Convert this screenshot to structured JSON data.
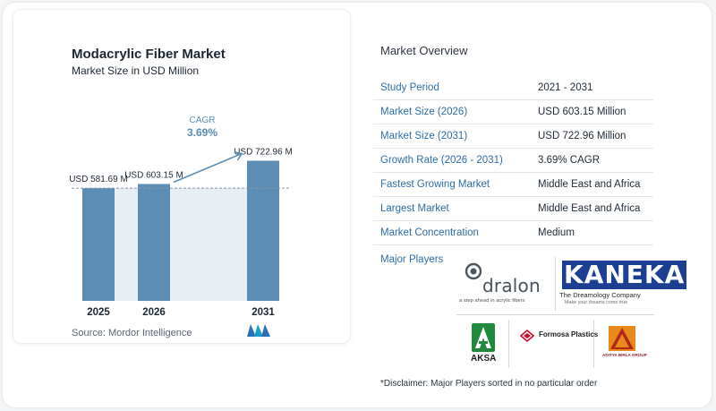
{
  "chart_data": {
    "type": "bar",
    "title": "Modacrylic Fiber Market",
    "subtitle": "Market Size in USD Million",
    "categories": [
      "2025",
      "2026",
      "2031"
    ],
    "values": [
      581.69,
      603.15,
      722.96
    ],
    "data_labels": [
      "USD 581.69 M",
      "USD 603.15 M",
      "USD 722.96 M"
    ],
    "cagr_label": "CAGR",
    "cagr_value": "3.69%",
    "reference_line": "dashed at 2025 value",
    "grid": false,
    "legend": "none",
    "colors": {
      "bar": "#5b8db5",
      "band": "#e6eef4",
      "arrow": "#5b8db5",
      "cagr": "#5b8db5"
    }
  },
  "source": "Source:  Mordor Intelligence",
  "overview": {
    "title": "Market Overview",
    "rows": [
      {
        "key": "Study Period",
        "value": "2021 - 2031"
      },
      {
        "key": "Market Size (2026)",
        "value": "USD 603.15 Million"
      },
      {
        "key": "Market Size (2031)",
        "value": "USD 722.96 Million"
      },
      {
        "key": "Growth Rate (2026 - 2031)",
        "value": "3.69% CAGR"
      },
      {
        "key": "Fastest Growing Market",
        "value": "Middle East and Africa"
      },
      {
        "key": "Largest Market",
        "value": "Middle East and Africa"
      },
      {
        "key": "Market Concentration",
        "value": "Medium"
      }
    ]
  },
  "players": {
    "label": "Major Players",
    "logos": [
      {
        "name": "dralon",
        "tagline": "a step ahead in acrylic fibers"
      },
      {
        "name": "KANEKA",
        "slogan": "The Dreamology Company",
        "tagline": "Make your dreams come true"
      },
      {
        "name": "AKSA"
      },
      {
        "name": "Formosa Plastics"
      },
      {
        "name": "ADITYA BIRLA GROUP"
      }
    ]
  },
  "disclaimer": "*Disclaimer: Major Players sorted in no particular order"
}
